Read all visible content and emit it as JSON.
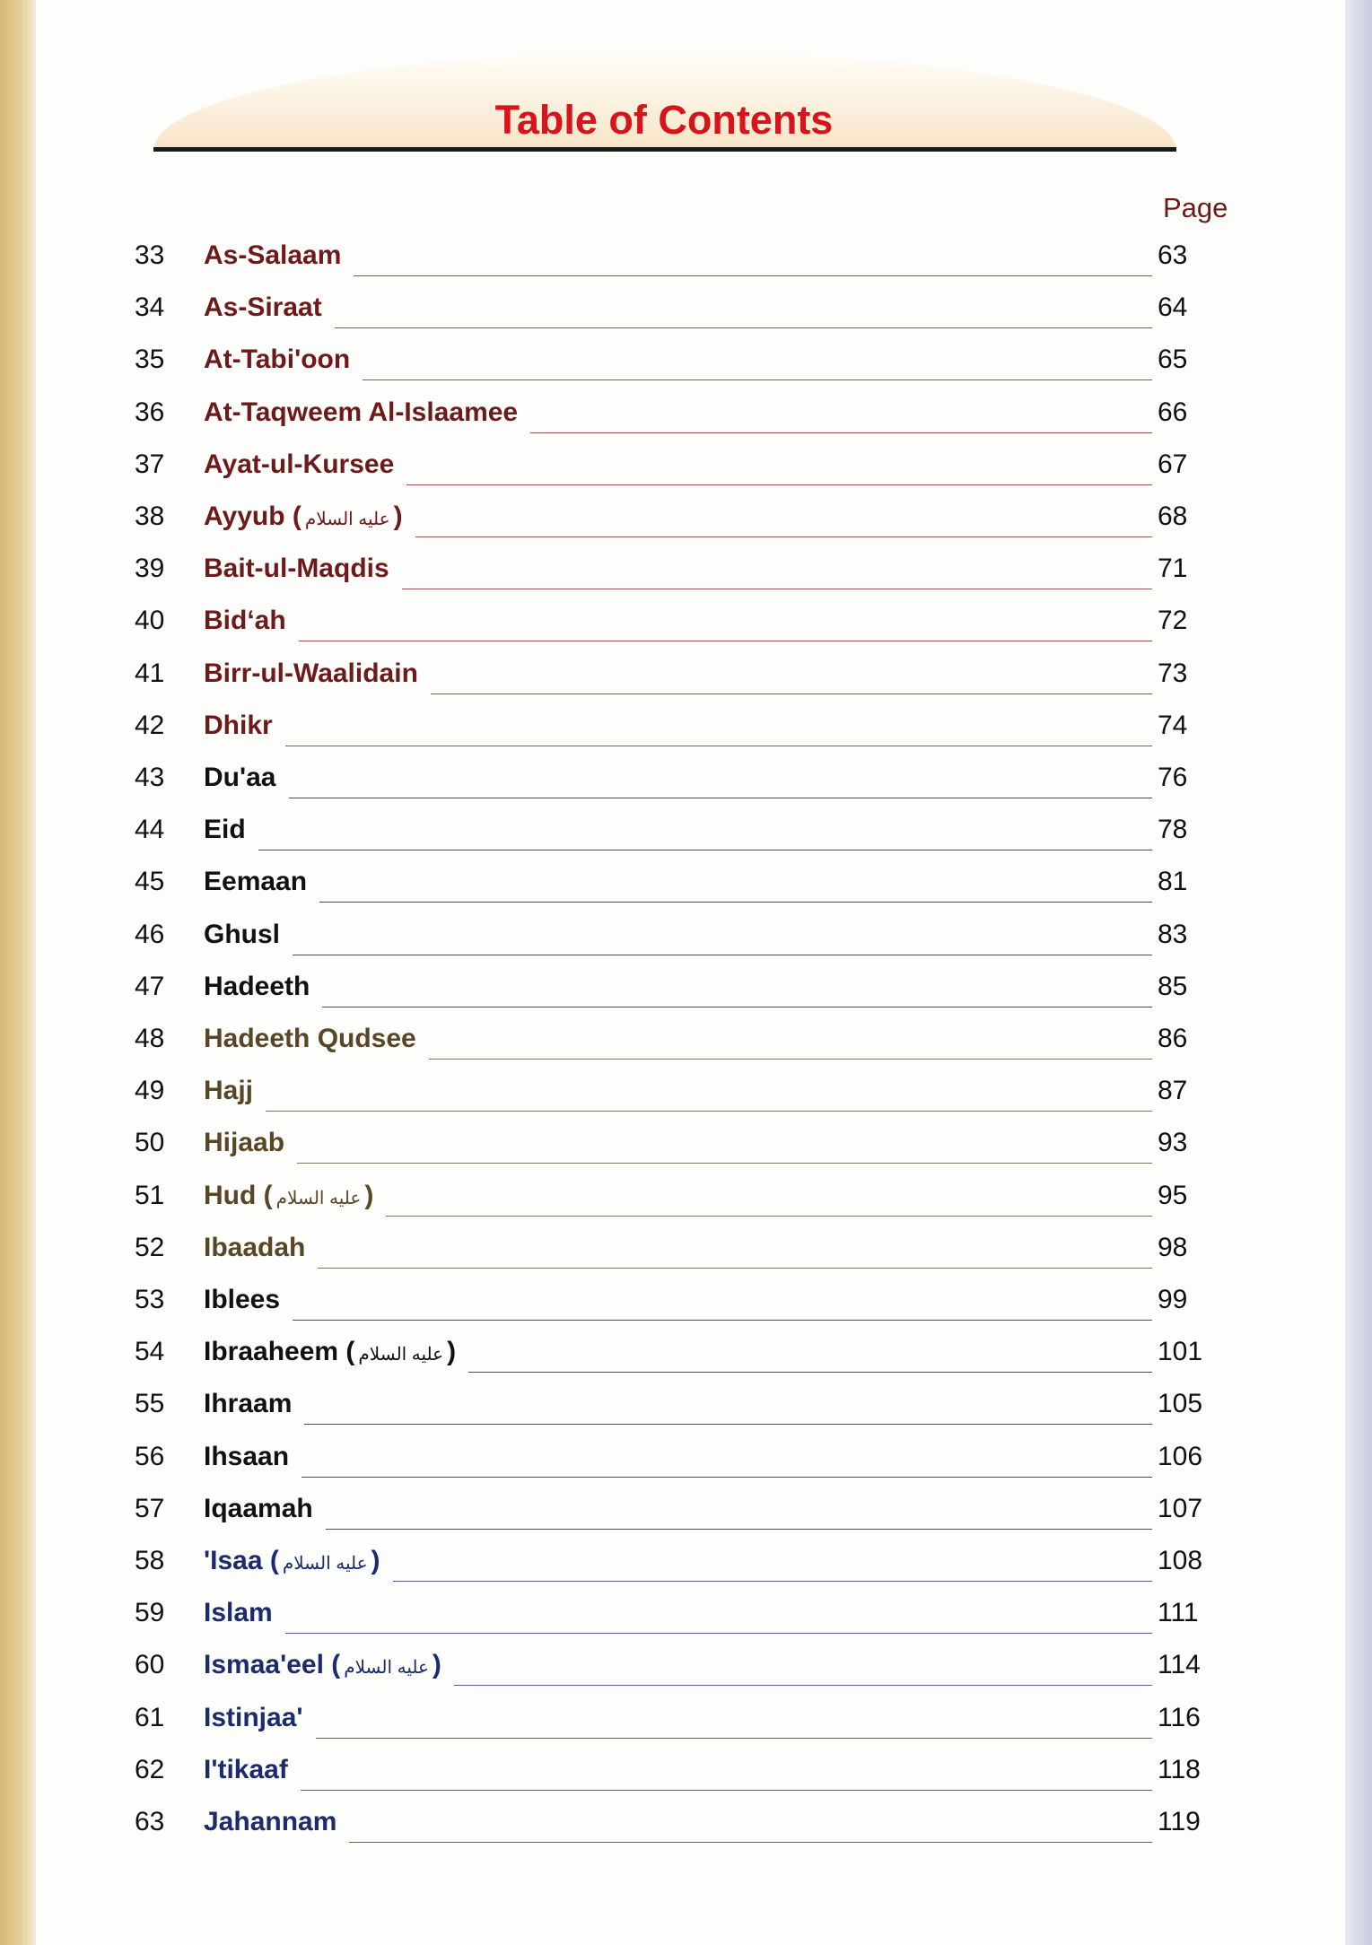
{
  "title": "Table of Contents",
  "page_header": "Page",
  "honorific": "عليه السلام",
  "colors": {
    "title": "#d7131b",
    "maroon": "#6e1a1a",
    "black": "#111111",
    "brown": "#5a4626",
    "navy": "#1c2a6e"
  },
  "entries": [
    {
      "num": "33",
      "label": "As-Salaam",
      "page": "63",
      "color": "maroon"
    },
    {
      "num": "34",
      "label": "As-Siraat",
      "page": "64",
      "color": "maroon"
    },
    {
      "num": "35",
      "label": "At-Tabi'oon",
      "page": "65",
      "color": "maroon"
    },
    {
      "num": "36",
      "label": "At-Taqweem Al-Islaamee",
      "page": "66",
      "color": "maroon"
    },
    {
      "num": "37",
      "label": "Ayat-ul-Kursee",
      "page": "67",
      "color": "maroon"
    },
    {
      "num": "38",
      "label": "Ayyub",
      "page": "68",
      "color": "maroon",
      "honorific": true
    },
    {
      "num": "39",
      "label": "Bait-ul-Maqdis",
      "page": "71",
      "color": "maroon"
    },
    {
      "num": "40",
      "label": "Bid‘ah",
      "page": "72",
      "color": "maroon"
    },
    {
      "num": "41",
      "label": "Birr-ul-Waalidain",
      "page": "73",
      "color": "maroon"
    },
    {
      "num": "42",
      "label": "Dhikr",
      "page": "74",
      "color": "maroon"
    },
    {
      "num": "43",
      "label": "Du'aa",
      "page": "76",
      "color": "black"
    },
    {
      "num": "44",
      "label": "Eid",
      "page": "78",
      "color": "black"
    },
    {
      "num": "45",
      "label": "Eemaan",
      "page": "81",
      "color": "black"
    },
    {
      "num": "46",
      "label": "Ghusl",
      "page": "83",
      "color": "black"
    },
    {
      "num": "47",
      "label": "Hadeeth",
      "page": "85",
      "color": "black"
    },
    {
      "num": "48",
      "label": "Hadeeth Qudsee",
      "page": "86",
      "color": "brown"
    },
    {
      "num": "49",
      "label": "Hajj",
      "page": "87",
      "color": "brown"
    },
    {
      "num": "50",
      "label": "Hijaab",
      "page": "93",
      "color": "brown"
    },
    {
      "num": "51",
      "label": "Hud",
      "page": "95",
      "color": "brown",
      "honorific": true
    },
    {
      "num": "52",
      "label": "Ibaadah",
      "page": "98",
      "color": "brown"
    },
    {
      "num": "53",
      "label": "Iblees",
      "page": "99",
      "color": "black"
    },
    {
      "num": "54",
      "label": "Ibraaheem",
      "page": "101",
      "color": "black",
      "honorific": true
    },
    {
      "num": "55",
      "label": "Ihraam",
      "page": "105",
      "color": "black"
    },
    {
      "num": "56",
      "label": "Ihsaan",
      "page": "106",
      "color": "black"
    },
    {
      "num": "57",
      "label": "Iqaamah",
      "page": "107",
      "color": "black"
    },
    {
      "num": "58",
      "label": "'Isaa",
      "page": "108",
      "color": "navy",
      "honorific": true
    },
    {
      "num": "59",
      "label": "Islam",
      "page": "111",
      "color": "navy"
    },
    {
      "num": "60",
      "label": "Ismaa'eel",
      "page": "114",
      "color": "navy",
      "honorific": true
    },
    {
      "num": "61",
      "label": "Istinjaa'",
      "page": "116",
      "color": "navy"
    },
    {
      "num": "62",
      "label": "I'tikaaf",
      "page": "118",
      "color": "navy"
    },
    {
      "num": "63",
      "label": "Jahannam",
      "page": "119",
      "color": "navy"
    }
  ]
}
